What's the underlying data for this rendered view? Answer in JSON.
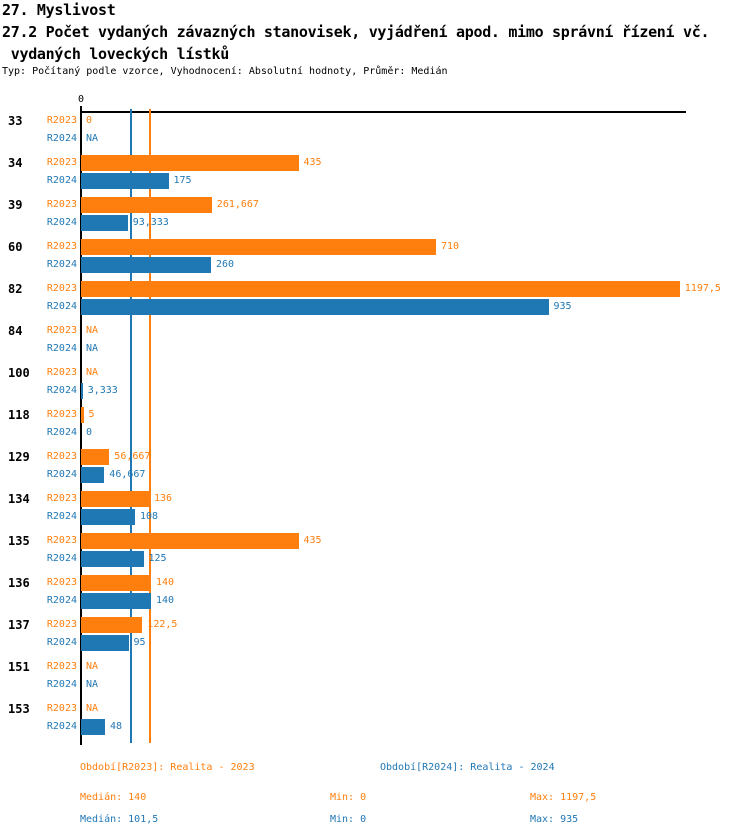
{
  "header": {
    "chapter": "27. Myslivost",
    "title_line1": "27.2 Počet vydaných závazných stanovisek, vyjádření apod. mimo správní řízení vč.",
    "title_line2": " vydaných loveckých lístků",
    "meta": "Typ: Počítaný podle vzorce, Vyhodnocení: Absolutní hodnoty, Průměr: Medián"
  },
  "colors": {
    "r2023": "#ff7f0e",
    "r2024": "#1f77b4",
    "axis": "#000000"
  },
  "chart_data": {
    "type": "bar",
    "orientation": "horizontal",
    "title": "27.2 Počet vydaných závazných stanovisek, vyjádření apod. mimo správní řízení vč. vydaných loveckých lístků",
    "categories": [
      "33",
      "34",
      "39",
      "60",
      "82",
      "84",
      "100",
      "118",
      "129",
      "134",
      "135",
      "136",
      "137",
      "151",
      "153"
    ],
    "series": [
      {
        "name": "R2023",
        "color": "#ff7f0e",
        "values": [
          0,
          435,
          261.667,
          710,
          1197.5,
          null,
          null,
          5,
          56.667,
          136,
          435,
          140,
          122.5,
          null,
          null
        ],
        "labels": [
          "0",
          "435",
          "261,667",
          "710",
          "1197,5",
          "NA",
          "NA",
          "5",
          "56,667",
          "136",
          "435",
          "140",
          "122,5",
          "NA",
          "NA"
        ]
      },
      {
        "name": "R2024",
        "color": "#1f77b4",
        "values": [
          null,
          175,
          93.333,
          260,
          935,
          null,
          3.333,
          0,
          46.667,
          108,
          125,
          140,
          95,
          null,
          48
        ],
        "labels": [
          "NA",
          "175",
          "93,333",
          "260",
          "935",
          "NA",
          "3,333",
          "0",
          "46,667",
          "108",
          "125",
          "140",
          "95",
          "NA",
          "48"
        ]
      }
    ],
    "x_axis": {
      "zero_label": "0",
      "min": 0,
      "max": 1200
    },
    "median_lines": [
      {
        "series": "R2023",
        "value": 140,
        "color": "#ff7f0e"
      },
      {
        "series": "R2024",
        "value": 101.5,
        "color": "#1f77b4"
      }
    ],
    "grid": false,
    "legend_position": "bottom"
  },
  "legend": {
    "items": [
      {
        "label": "Období[R2023]: Realita - 2023",
        "color_role": "r2023"
      },
      {
        "label": "Období[R2024]: Realita - 2024",
        "color_role": "r2024"
      }
    ]
  },
  "stats": {
    "rows": [
      {
        "median": "Medián: 140",
        "min": "Min: 0",
        "max": "Max: 1197,5",
        "color_role": "r2023"
      },
      {
        "median": "Medián: 101,5",
        "min": "Min: 0",
        "max": "Max: 935",
        "color_role": "r2024"
      }
    ]
  }
}
